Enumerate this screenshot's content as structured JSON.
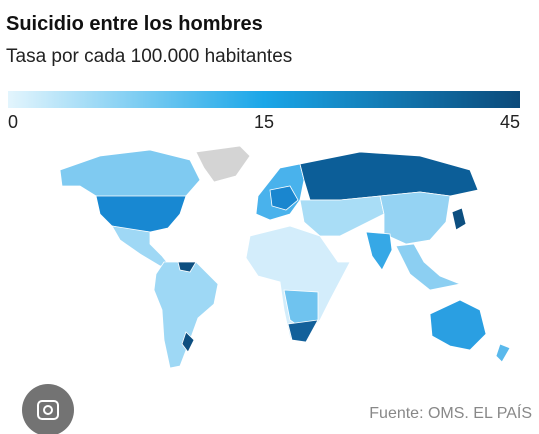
{
  "title": "Suicidio entre los hombres",
  "subtitle": "Tasa por cada 100.000 habitantes",
  "colorbar": {
    "ticks": [
      0,
      15,
      45
    ],
    "colors": [
      "#e3f5fd",
      "#1aa6e8",
      "#0b4a7a"
    ]
  },
  "source": "Fuente: OMS. EL PAÍS"
}
